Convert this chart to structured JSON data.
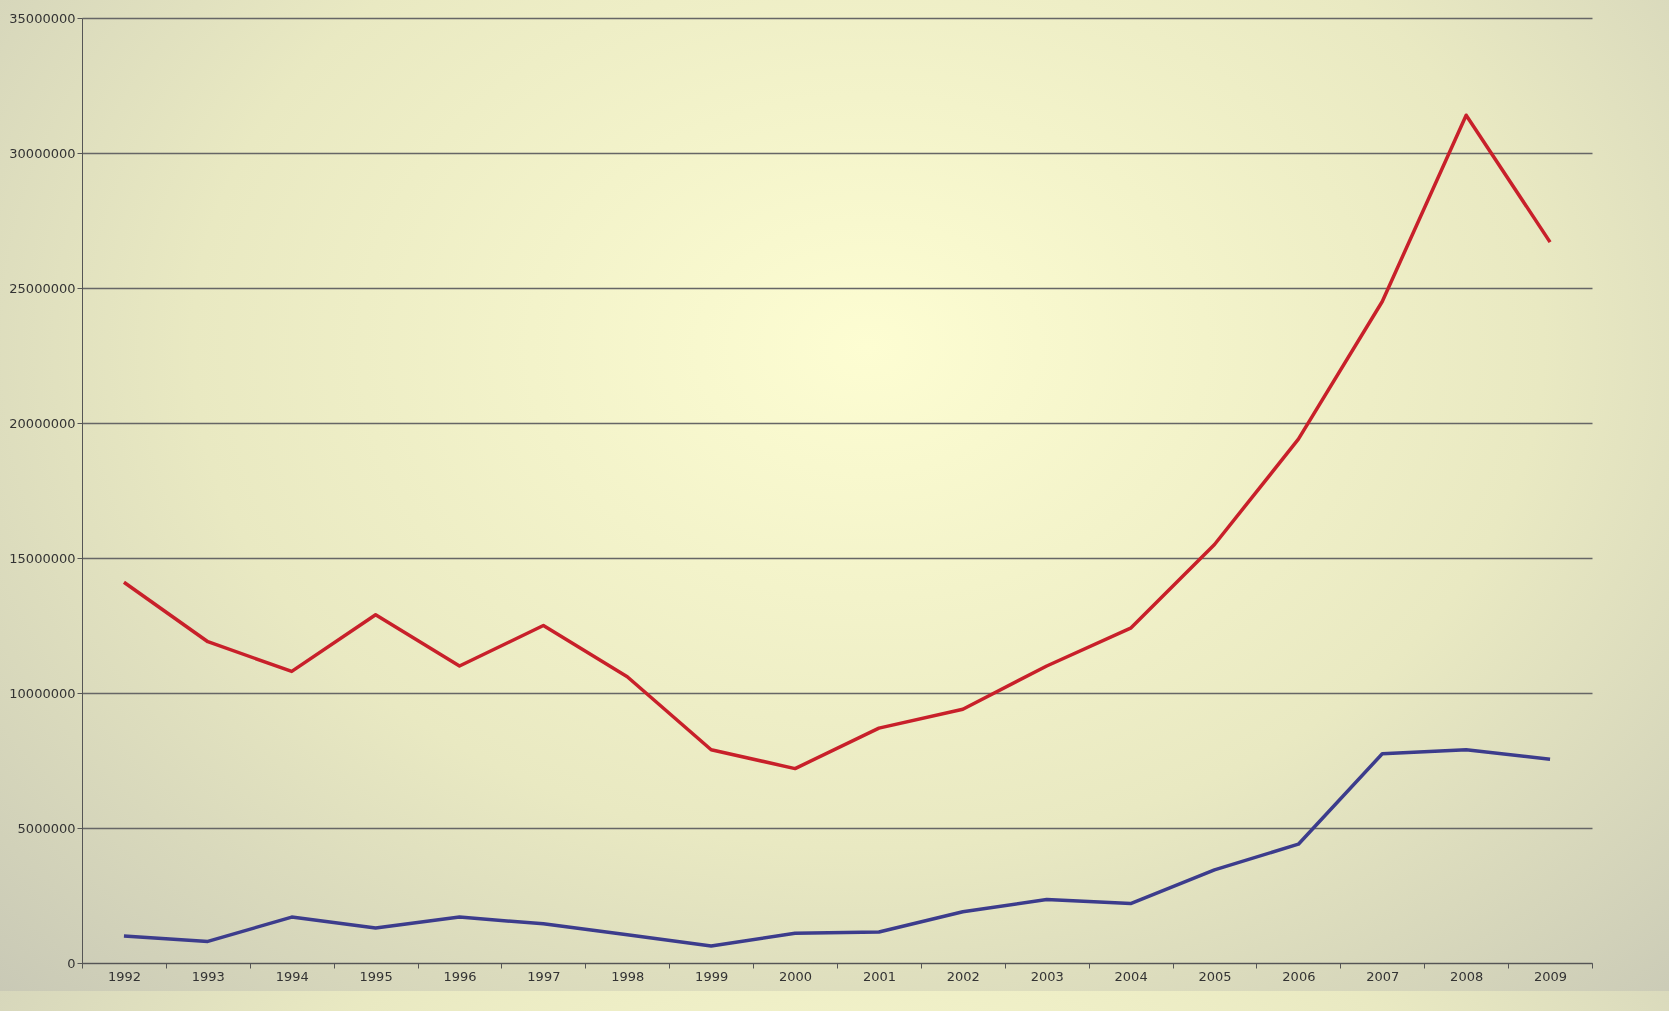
{
  "chart_data": {
    "type": "line",
    "categories": [
      "1992",
      "1993",
      "1994",
      "1995",
      "1996",
      "1997",
      "1998",
      "1999",
      "2000",
      "2001",
      "2002",
      "2003",
      "2004",
      "2005",
      "2006",
      "2007",
      "2008",
      "2009"
    ],
    "series": [
      {
        "color": "#c8202a",
        "values": [
          14100000,
          11900000,
          10800000,
          12900000,
          11000000,
          12500000,
          10600000,
          7900000,
          7200000,
          8700000,
          9400000,
          11000000,
          12400000,
          15500000,
          19400000,
          24500000,
          31400000,
          26700000
        ]
      },
      {
        "color": "#3c3c8c",
        "values": [
          1000000,
          800000,
          1700000,
          1300000,
          1700000,
          1450000,
          1050000,
          630000,
          1100000,
          1150000,
          1900000,
          2350000,
          2200000,
          3450000,
          4400000,
          7750000,
          7900000,
          7550000
        ]
      }
    ],
    "ylim": [
      0,
      35000000
    ],
    "yticks": [
      0,
      5000000,
      10000000,
      15000000,
      20000000,
      25000000,
      30000000,
      35000000
    ],
    "grid": "y",
    "legend": false,
    "marker": "none",
    "line_style": "solid"
  }
}
